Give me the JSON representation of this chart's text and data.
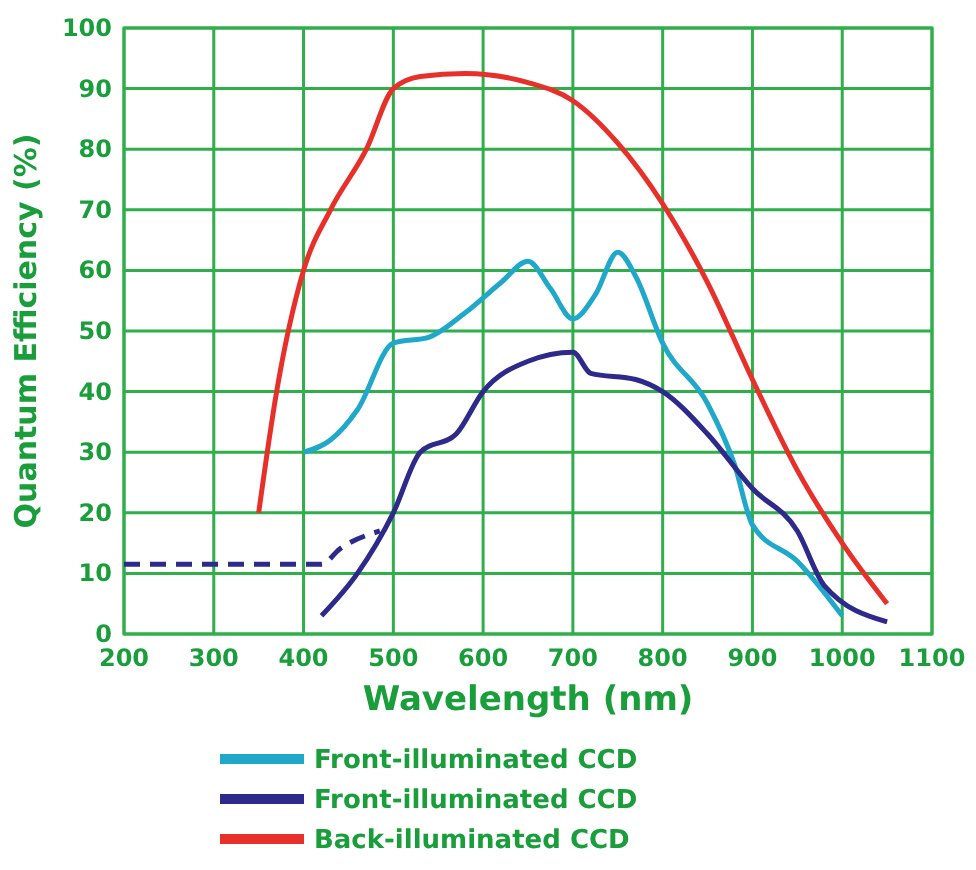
{
  "chart_data": {
    "type": "line",
    "xlabel": "Wavelength (nm)",
    "ylabel": "Quantum Efficiency (%)",
    "xlim": [
      200,
      1100
    ],
    "xticks": [
      200,
      300,
      400,
      500,
      600,
      700,
      800,
      900,
      1000,
      1100
    ],
    "ylim": [
      0,
      100
    ],
    "yticks": [
      0,
      10,
      20,
      30,
      40,
      50,
      60,
      70,
      80,
      90,
      100
    ],
    "grid": true,
    "legend": "bottom",
    "marker": "none",
    "series": [
      {
        "name": "Front-illuminated CCD",
        "color": "#1fa8c9",
        "x": [
          400,
          430,
          460,
          500,
          540,
          580,
          620,
          650,
          675,
          700,
          725,
          750,
          770,
          800,
          850,
          880,
          900,
          950,
          1000
        ],
        "values": [
          30,
          32,
          37,
          48,
          49,
          53,
          58,
          61.5,
          57,
          52,
          56,
          63,
          59,
          48,
          38,
          28,
          18,
          12,
          3
        ]
      },
      {
        "name": "Front-illuminated CCD",
        "color": "#2e2a8c",
        "x": [
          420,
          460,
          500,
          530,
          570,
          600,
          650,
          700,
          720,
          770,
          800,
          850,
          900,
          950,
          980,
          1050
        ],
        "values": [
          3,
          10,
          20,
          30,
          33,
          40,
          45,
          46.5,
          43,
          42,
          40,
          33,
          24,
          17,
          8,
          2
        ]
      },
      {
        "name": "Back-illuminated CCD",
        "color": "#e8302a",
        "x": [
          350,
          370,
          400,
          430,
          470,
          500,
          530,
          580,
          650,
          700,
          750,
          800,
          850,
          900,
          950,
          1000,
          1050
        ],
        "values": [
          20,
          40,
          60,
          70,
          80,
          90,
          92,
          92.5,
          91,
          88,
          81,
          71,
          58,
          42,
          27,
          15,
          5
        ]
      },
      {
        "color": "#2e2a8c",
        "line_style": "dashed",
        "x": [
          200,
          420,
          440,
          485
        ],
        "values": [
          11.5,
          11.5,
          14,
          17
        ]
      }
    ]
  }
}
